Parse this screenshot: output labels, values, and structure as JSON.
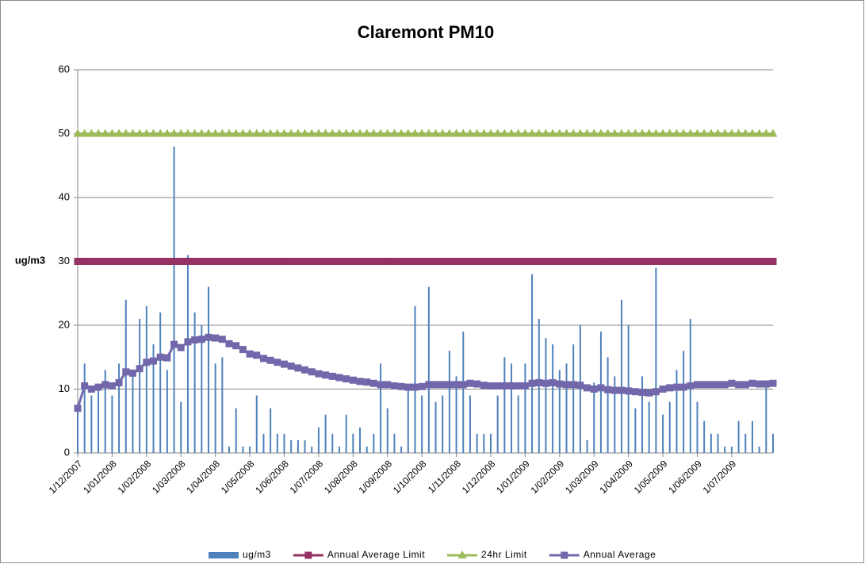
{
  "chart_data": {
    "type": "line",
    "title": "Claremont PM10",
    "y_label": "ug/m3",
    "ylim": [
      0,
      60
    ],
    "yticks": [
      0,
      10,
      20,
      30,
      40,
      50,
      60
    ],
    "grid": true,
    "legend": "bottom",
    "categories": [
      "1/12/2007",
      null,
      null,
      null,
      null,
      "1/01/2008",
      null,
      null,
      null,
      null,
      "1/02/2008",
      null,
      null,
      null,
      null,
      "1/03/2008",
      null,
      null,
      null,
      null,
      "1/04/2008",
      null,
      null,
      null,
      null,
      "1/05/2008",
      null,
      null,
      null,
      null,
      "1/06/2008",
      null,
      null,
      null,
      null,
      "1/07/2008",
      null,
      null,
      null,
      null,
      "1/08/2008",
      null,
      null,
      null,
      null,
      "1/09/2008",
      null,
      null,
      null,
      null,
      "1/10/2008",
      null,
      null,
      null,
      null,
      "1/11/2008",
      null,
      null,
      null,
      null,
      "1/12/2008",
      null,
      null,
      null,
      null,
      "1/01/2009",
      null,
      null,
      null,
      null,
      "1/02/2009",
      null,
      null,
      null,
      null,
      "1/03/2009",
      null,
      null,
      null,
      null,
      "1/04/2009",
      null,
      null,
      null,
      null,
      "1/05/2009",
      null,
      null,
      null,
      null,
      "1/06/2009",
      null,
      null,
      null,
      null,
      "1/07/2009",
      null,
      null,
      null,
      null,
      null,
      null
    ],
    "series": [
      {
        "name": "ug/m3",
        "type": "bar",
        "color": "#4f81bd",
        "values": [
          7,
          14,
          9,
          10,
          13,
          9,
          14,
          24,
          12,
          21,
          23,
          17,
          22,
          13,
          48,
          8,
          31,
          22,
          20,
          26,
          14,
          15,
          1,
          7,
          1,
          1,
          9,
          3,
          7,
          3,
          3,
          2,
          2,
          2,
          1,
          4,
          6,
          3,
          1,
          6,
          3,
          4,
          1,
          3,
          14,
          7,
          3,
          1,
          10,
          23,
          9,
          26,
          8,
          9,
          16,
          12,
          19,
          9,
          3,
          3,
          3,
          9,
          15,
          14,
          9,
          14,
          28,
          21,
          18,
          17,
          13,
          14,
          17,
          20,
          2,
          11,
          19,
          15,
          12,
          24,
          20,
          7,
          12,
          8,
          29,
          6,
          8,
          13,
          16,
          21,
          8,
          5,
          3,
          3,
          1,
          1,
          5,
          3,
          5,
          1,
          11,
          3
        ]
      },
      {
        "name": "Annual Average Limit",
        "type": "line",
        "marker": "square",
        "color": "#953163",
        "values": [
          30,
          30,
          30,
          30,
          30,
          30,
          30,
          30,
          30,
          30,
          30,
          30,
          30,
          30,
          30,
          30,
          30,
          30,
          30,
          30,
          30,
          30,
          30,
          30,
          30,
          30,
          30,
          30,
          30,
          30,
          30,
          30,
          30,
          30,
          30,
          30,
          30,
          30,
          30,
          30,
          30,
          30,
          30,
          30,
          30,
          30,
          30,
          30,
          30,
          30,
          30,
          30,
          30,
          30,
          30,
          30,
          30,
          30,
          30,
          30,
          30,
          30,
          30,
          30,
          30,
          30,
          30,
          30,
          30,
          30,
          30,
          30,
          30,
          30,
          30,
          30,
          30,
          30,
          30,
          30,
          30,
          30,
          30,
          30,
          30,
          30,
          30,
          30,
          30,
          30,
          30,
          30,
          30,
          30,
          30,
          30,
          30,
          30,
          30,
          30,
          30,
          30
        ]
      },
      {
        "name": "24hr Limit",
        "type": "line",
        "marker": "triangle",
        "color": "#9bbb59",
        "values": [
          50,
          50,
          50,
          50,
          50,
          50,
          50,
          50,
          50,
          50,
          50,
          50,
          50,
          50,
          50,
          50,
          50,
          50,
          50,
          50,
          50,
          50,
          50,
          50,
          50,
          50,
          50,
          50,
          50,
          50,
          50,
          50,
          50,
          50,
          50,
          50,
          50,
          50,
          50,
          50,
          50,
          50,
          50,
          50,
          50,
          50,
          50,
          50,
          50,
          50,
          50,
          50,
          50,
          50,
          50,
          50,
          50,
          50,
          50,
          50,
          50,
          50,
          50,
          50,
          50,
          50,
          50,
          50,
          50,
          50,
          50,
          50,
          50,
          50,
          50,
          50,
          50,
          50,
          50,
          50,
          50,
          50,
          50,
          50,
          50,
          50,
          50,
          50,
          50,
          50,
          50,
          50,
          50,
          50,
          50,
          50,
          50,
          50,
          50,
          50,
          50,
          50
        ]
      },
      {
        "name": "Annual Average",
        "type": "line",
        "marker": "square",
        "color": "#7267aa",
        "values": [
          7,
          10.5,
          10,
          10.3,
          10.7,
          10.5,
          11,
          12.7,
          12.5,
          13.2,
          14.2,
          14.4,
          15,
          14.9,
          17,
          16.5,
          17.4,
          17.7,
          17.8,
          18.1,
          18,
          17.8,
          17.1,
          16.8,
          16.2,
          15.5,
          15.3,
          14.8,
          14.5,
          14.2,
          13.9,
          13.6,
          13.3,
          13,
          12.7,
          12.4,
          12.2,
          12,
          11.8,
          11.6,
          11.4,
          11.2,
          11.1,
          10.9,
          10.7,
          10.7,
          10.5,
          10.4,
          10.3,
          10.3,
          10.4,
          10.7,
          10.7,
          10.7,
          10.7,
          10.7,
          10.7,
          10.9,
          10.8,
          10.6,
          10.5,
          10.5,
          10.5,
          10.5,
          10.5,
          10.5,
          10.9,
          11,
          10.9,
          11,
          10.8,
          10.7,
          10.7,
          10.6,
          10.2,
          10,
          10.2,
          9.9,
          9.8,
          9.8,
          9.7,
          9.6,
          9.5,
          9.4,
          9.6,
          10,
          10.2,
          10.3,
          10.3,
          10.5,
          10.7,
          10.7,
          10.7,
          10.7,
          10.7,
          10.9,
          10.7,
          10.7,
          10.9,
          10.8,
          10.8,
          10.9
        ]
      }
    ]
  }
}
